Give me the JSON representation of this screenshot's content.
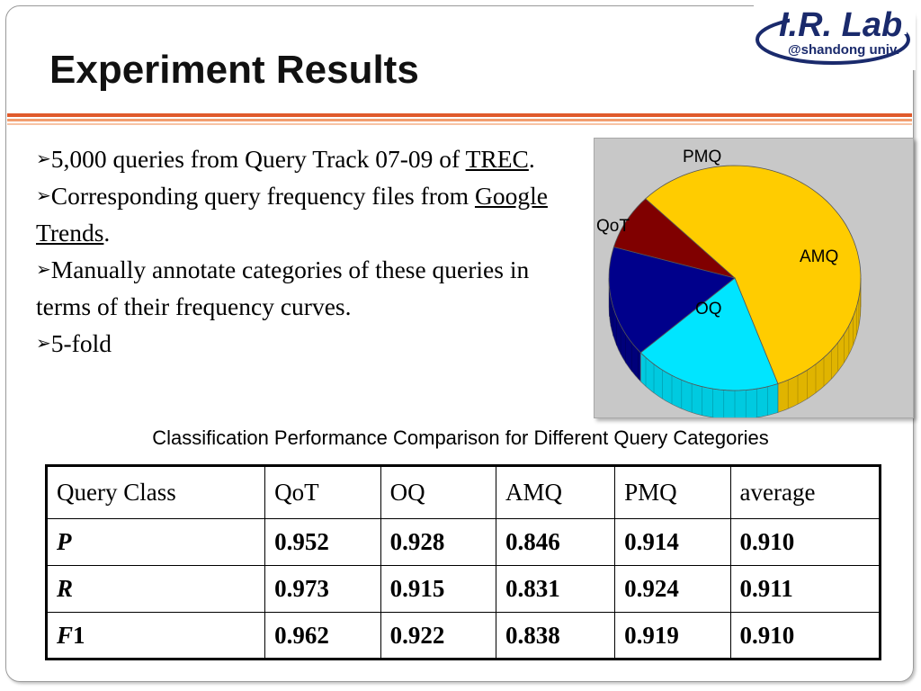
{
  "slide": {
    "title": "Experiment Results",
    "logo": {
      "main": "I.R. Lab",
      "sub": "@shandong univ."
    }
  },
  "bullets": [
    {
      "parts": [
        "5,000 queries from Query Track 07-09 of ",
        "TREC",
        "."
      ]
    },
    {
      "parts": [
        "Corresponding query frequency files from ",
        "Google Trends",
        "."
      ]
    },
    {
      "text": "Manually annotate categories of these queries in terms of their frequency curves."
    },
    {
      "text": "5-fold"
    }
  ],
  "chart_data": {
    "type": "pie",
    "style": "3d",
    "categories": [
      "AMQ",
      "OQ",
      "QoT",
      "PMQ"
    ],
    "values": [
      57,
      19,
      16,
      8
    ],
    "colors": [
      "#ffcc00",
      "#00e5ff",
      "#00008b",
      "#800000"
    ],
    "labels": [
      "AMQ",
      "OQ",
      "QoT",
      "PMQ"
    ],
    "background": "#c8c8c8"
  },
  "table": {
    "caption": "Classification Performance Comparison for Different Query Categories",
    "headers": [
      "Query Class",
      "QoT",
      "OQ",
      "AMQ",
      "PMQ",
      "average"
    ],
    "rows": [
      {
        "label": "P",
        "suffix": "",
        "values": [
          "0.952",
          "0.928",
          "0.846",
          "0.914",
          "0.910"
        ]
      },
      {
        "label": "R",
        "suffix": "",
        "values": [
          "0.973",
          "0.915",
          "0.831",
          "0.924",
          "0.911"
        ]
      },
      {
        "label": "F",
        "suffix": "1",
        "values": [
          "0.962",
          "0.922",
          "0.838",
          "0.919",
          "0.910"
        ]
      }
    ]
  },
  "colors": {
    "accent_rule": "#e05a2b",
    "logo_blue": "#1a2a6c"
  }
}
